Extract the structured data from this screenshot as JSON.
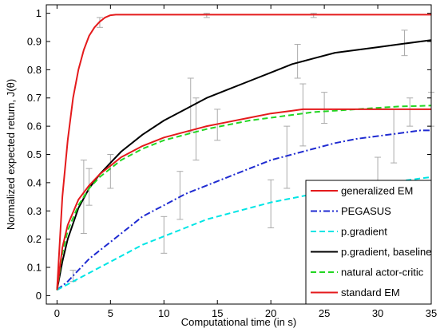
{
  "chart_data": {
    "type": "line",
    "xlabel": "Computational time (in s)",
    "ylabel": "Normalized expected return, J(θ)",
    "xlim": [
      -1,
      35
    ],
    "ylim": [
      -0.03,
      1.03
    ],
    "xticks": [
      0,
      5,
      10,
      15,
      20,
      25,
      30,
      35
    ],
    "xtick_labels": [
      "0",
      "5",
      "10",
      "15",
      "20",
      "25",
      "30",
      "35"
    ],
    "yticks": [
      0,
      0.1,
      0.2,
      0.3,
      0.4,
      0.5,
      0.6,
      0.7,
      0.8,
      0.9,
      1
    ],
    "ytick_labels": [
      "0",
      "0.1",
      "0.2",
      "0.3",
      "0.4",
      "0.5",
      "0.6",
      "0.7",
      "0.8",
      "0.9",
      "1"
    ],
    "grid": false,
    "legend_position": "bottom-right",
    "series": [
      {
        "name": "generalized EM",
        "color": "#e41a1c",
        "dash": "solid",
        "x": [
          0,
          0.5,
          1,
          1.5,
          2,
          2.5,
          3,
          3.5,
          4,
          4.5,
          5,
          5.5,
          6,
          10,
          15,
          20,
          25,
          30,
          35
        ],
        "y": [
          0.02,
          0.35,
          0.55,
          0.7,
          0.8,
          0.87,
          0.92,
          0.95,
          0.97,
          0.985,
          0.993,
          0.995,
          0.995,
          0.995,
          0.995,
          0.995,
          0.995,
          0.995,
          0.995
        ],
        "errorbars": [
          {
            "x": 4,
            "lo": 0.95,
            "hi": 0.985
          },
          {
            "x": 14,
            "lo": 0.985,
            "hi": 1.0
          },
          {
            "x": 24,
            "lo": 0.985,
            "hi": 1.0
          }
        ]
      },
      {
        "name": "PEGASUS",
        "color": "#1f2bd1",
        "dash": "dashdot",
        "x": [
          0,
          1,
          2,
          3,
          4,
          5,
          6,
          8,
          10,
          12,
          14,
          16,
          18,
          20,
          22,
          24,
          26,
          28,
          30,
          32,
          34,
          35
        ],
        "y": [
          0.02,
          0.05,
          0.09,
          0.13,
          0.16,
          0.19,
          0.22,
          0.28,
          0.32,
          0.36,
          0.39,
          0.42,
          0.45,
          0.48,
          0.5,
          0.52,
          0.54,
          0.555,
          0.565,
          0.575,
          0.585,
          0.585
        ],
        "errorbars": [
          {
            "x": 1.5,
            "lo": 0.05,
            "hi": 0.09
          },
          {
            "x": 11.5,
            "lo": 0.27,
            "hi": 0.44
          },
          {
            "x": 21.5,
            "lo": 0.38,
            "hi": 0.6
          },
          {
            "x": 31.5,
            "lo": 0.47,
            "hi": 0.66
          }
        ]
      },
      {
        "name": "p.gradient",
        "color": "#00e5e5",
        "dash": "dashed",
        "x": [
          0,
          1,
          2,
          4,
          6,
          8,
          10,
          12,
          14,
          16,
          18,
          20,
          22,
          24,
          26,
          28,
          30,
          32,
          34,
          35
        ],
        "y": [
          0.02,
          0.04,
          0.06,
          0.1,
          0.14,
          0.18,
          0.21,
          0.24,
          0.27,
          0.29,
          0.31,
          0.33,
          0.345,
          0.36,
          0.375,
          0.385,
          0.395,
          0.405,
          0.415,
          0.42
        ],
        "errorbars": [
          {
            "x": 10,
            "lo": 0.15,
            "hi": 0.28
          },
          {
            "x": 20,
            "lo": 0.24,
            "hi": 0.41
          },
          {
            "x": 30,
            "lo": 0.31,
            "hi": 0.49
          }
        ]
      },
      {
        "name": "p.gradient, baseline",
        "color": "#000000",
        "dash": "solid",
        "x": [
          0,
          0.5,
          1,
          2,
          3,
          4,
          5,
          6,
          8,
          10,
          12,
          14,
          16,
          18,
          20,
          22,
          24,
          26,
          28,
          30,
          32,
          34,
          35
        ],
        "y": [
          0.02,
          0.12,
          0.2,
          0.31,
          0.38,
          0.43,
          0.47,
          0.51,
          0.57,
          0.62,
          0.66,
          0.7,
          0.73,
          0.76,
          0.79,
          0.82,
          0.84,
          0.86,
          0.87,
          0.88,
          0.89,
          0.9,
          0.905
        ],
        "errorbars": [
          {
            "x": 2.5,
            "lo": 0.22,
            "hi": 0.48
          },
          {
            "x": 12.5,
            "lo": 0.58,
            "hi": 0.77
          },
          {
            "x": 22.5,
            "lo": 0.77,
            "hi": 0.89
          },
          {
            "x": 32.5,
            "lo": 0.85,
            "hi": 0.94
          }
        ]
      },
      {
        "name": "natural actor-critic",
        "color": "#22d622",
        "dash": "dashed",
        "x": [
          0,
          0.5,
          1,
          2,
          3,
          4,
          5,
          6,
          8,
          10,
          12,
          14,
          16,
          18,
          20,
          22,
          24,
          26,
          28,
          30,
          32,
          34,
          35
        ],
        "y": [
          0.02,
          0.15,
          0.23,
          0.32,
          0.38,
          0.42,
          0.45,
          0.48,
          0.52,
          0.55,
          0.57,
          0.59,
          0.605,
          0.62,
          0.63,
          0.64,
          0.65,
          0.655,
          0.66,
          0.665,
          0.67,
          0.672,
          0.673
        ],
        "errorbars": [
          {
            "x": 3,
            "lo": 0.32,
            "hi": 0.45
          },
          {
            "x": 13,
            "lo": 0.48,
            "hi": 0.7
          },
          {
            "x": 23,
            "lo": 0.53,
            "hi": 0.75
          },
          {
            "x": 33,
            "lo": 0.6,
            "hi": 0.7
          }
        ]
      },
      {
        "name": "standard EM",
        "color": "#e41a1c",
        "dash": "solid",
        "x": [
          0,
          0.5,
          1,
          2,
          3,
          4,
          5,
          6,
          8,
          10,
          12,
          14,
          16,
          18,
          20,
          22,
          23,
          25,
          27,
          29,
          31,
          33,
          35
        ],
        "y": [
          0.02,
          0.17,
          0.25,
          0.34,
          0.39,
          0.43,
          0.46,
          0.49,
          0.53,
          0.56,
          0.58,
          0.6,
          0.615,
          0.63,
          0.645,
          0.655,
          0.66,
          0.66,
          0.66,
          0.66,
          0.66,
          0.66,
          0.66
        ],
        "errorbars": [
          {
            "x": 5,
            "lo": 0.38,
            "hi": 0.5
          },
          {
            "x": 15,
            "lo": 0.55,
            "hi": 0.66
          },
          {
            "x": 25,
            "lo": 0.61,
            "hi": 0.72
          },
          {
            "x": 35,
            "lo": 0.6,
            "hi": 0.72
          }
        ]
      }
    ]
  }
}
